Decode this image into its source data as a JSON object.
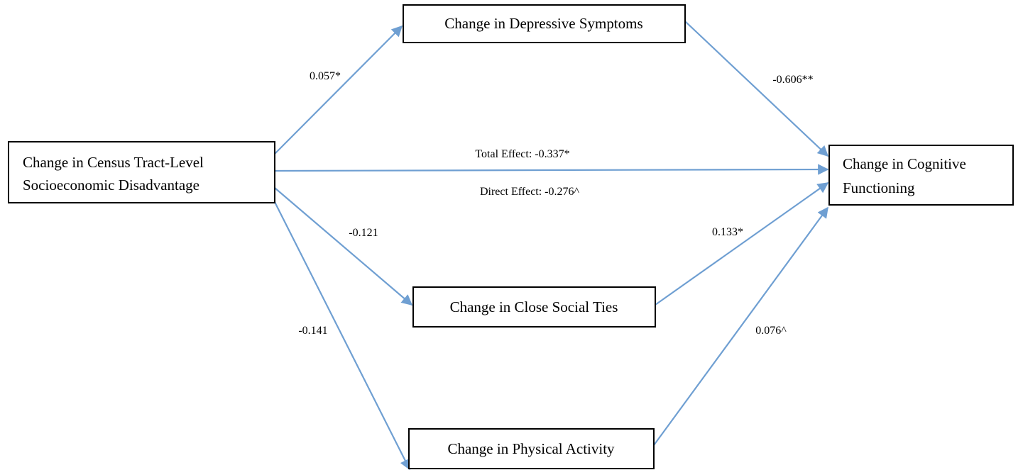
{
  "nodes": [
    {
      "lines": [
        "Change in Census Tract-Level",
        "Socioeconomic Disadvantage"
      ]
    },
    {
      "lines": [
        "Change in Depressive Symptoms"
      ]
    },
    {
      "lines": [
        "Change in Cognitive",
        "Functioning"
      ]
    },
    {
      "lines": [
        "Change in Close Social Ties"
      ]
    },
    {
      "lines": [
        "Change in Physical Activity"
      ]
    }
  ],
  "edges": [
    {
      "label": "0.057*"
    },
    {
      "label": "-0.606**"
    },
    {
      "label": "Total Effect: -0.337*",
      "label2": "Direct Effect: -0.276^"
    },
    {
      "label": "-0.121"
    },
    {
      "label": "0.133*"
    },
    {
      "label": "-0.141"
    },
    {
      "label": "0.076^"
    }
  ]
}
